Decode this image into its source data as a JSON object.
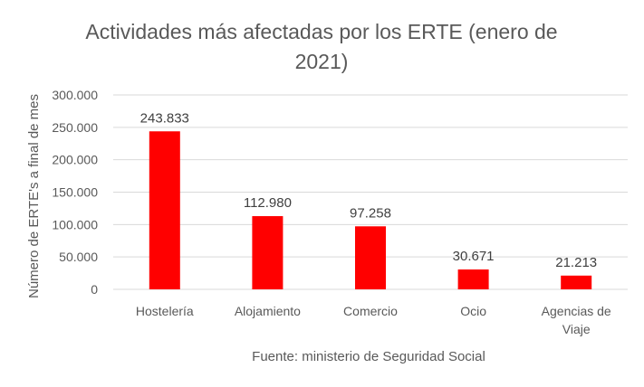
{
  "chart_data": {
    "type": "bar",
    "title_lines": [
      "Actividades más afectadas por los ERTE (enero de",
      "2021)"
    ],
    "categories": [
      [
        "Hostelería"
      ],
      [
        "Alojamiento"
      ],
      [
        "Comercio"
      ],
      [
        "Ocio"
      ],
      [
        "Agencias de",
        "Viaje"
      ]
    ],
    "values": [
      243833,
      112980,
      97258,
      30671,
      21213
    ],
    "data_labels": [
      "243.833",
      "112.980",
      "97.258",
      "30.671",
      "21.213"
    ],
    "ylabel": "Número de ERTE's a final de mes",
    "xlabel": "Fuente: ministerio de Seguridad Social",
    "ylim": [
      0,
      300000
    ],
    "yticks": [
      0,
      50000,
      100000,
      150000,
      200000,
      250000,
      300000
    ],
    "ytick_labels": [
      "0",
      "50.000",
      "100.000",
      "150.000",
      "200.000",
      "250.000",
      "300.000"
    ],
    "grid": true,
    "legend": "none",
    "colors": {
      "bar": "#ff0000",
      "grid": "#d9d9d9",
      "text": "#595959",
      "title": "#595959"
    }
  }
}
